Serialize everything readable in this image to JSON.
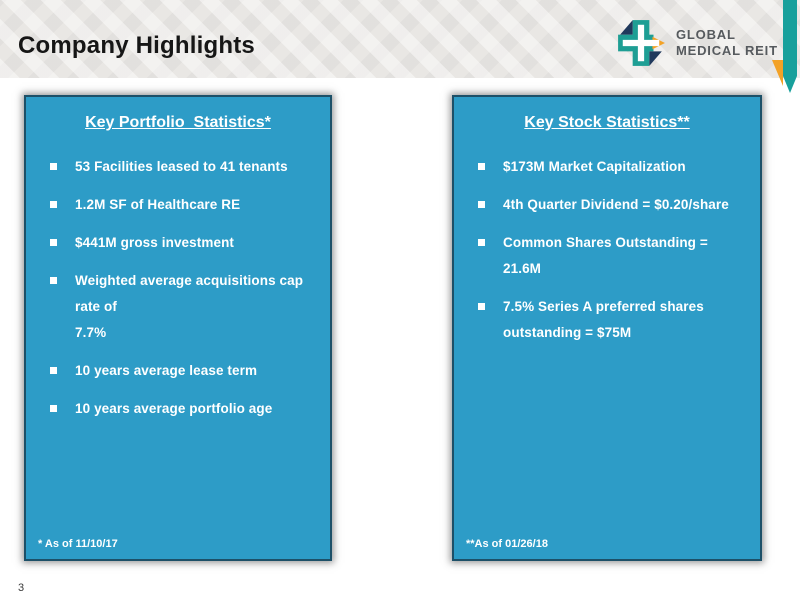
{
  "slide": {
    "title": "Company Highlights",
    "page_number": "3"
  },
  "logo": {
    "name_line1": "GLOBAL",
    "name_line2": "MEDICAL REIT",
    "icon": "pinwheel-medical-cross-icon",
    "colors": {
      "teal": "#1e9e94",
      "navy": "#20395c",
      "orange": "#f3a226",
      "text_gray": "#565a5e"
    }
  },
  "ribbon": {
    "icon": "teal-arrow-ribbon",
    "teal": "#18a09c",
    "orange": "#f3a226"
  },
  "left_box": {
    "title": "Key Portfolio  Statistics*",
    "items": [
      {
        "lines": [
          "53 Facilities leased to 41 tenants"
        ]
      },
      {
        "lines": [
          "1.2M SF of Healthcare RE"
        ]
      },
      {
        "lines": [
          "$441M gross investment"
        ]
      },
      {
        "lines": [
          "Weighted average acquisitions cap rate of",
          "7.7%"
        ]
      },
      {
        "lines": [
          "10 years average lease term"
        ]
      },
      {
        "lines": [
          "10 years average portfolio age"
        ]
      }
    ],
    "footnote": "* As of 11/10/17"
  },
  "right_box": {
    "title": "Key Stock Statistics**",
    "items": [
      {
        "lines": [
          "$173M Market Capitalization"
        ]
      },
      {
        "lines": [
          "4th Quarter Dividend = $0.20/share"
        ]
      },
      {
        "lines": [
          "Common Shares Outstanding = 21.6M"
        ]
      },
      {
        "lines": [
          "7.5% Series A preferred shares",
          "outstanding = $75M"
        ]
      }
    ],
    "footnote": "**As of 01/26/18"
  },
  "colors": {
    "box_fill": "#2d9cc7",
    "box_border": "#1d5068",
    "header_band": "#e9e7e4",
    "title_text": "#161616"
  }
}
